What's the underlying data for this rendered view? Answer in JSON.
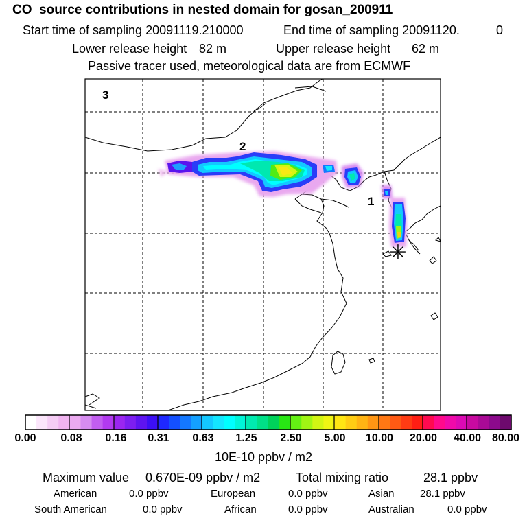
{
  "header": {
    "title": "CO  source contributions in nested domain for gosan_200911",
    "start_label": "Start time of sampling 20091119.210000",
    "end_label": "End time of sampling 20091120.",
    "end_value": "0",
    "lower_label": "Lower release height",
    "lower_value": "82 m",
    "upper_label": "Upper release height",
    "upper_value": "62 m",
    "tracer_line": "Passive tracer used, meteorological data are from ECMWF"
  },
  "map": {
    "markers": [
      "1",
      "2",
      "3"
    ],
    "receptor_symbol": "✳"
  },
  "colorbar": {
    "labels": [
      "0.00",
      "0.08",
      "0.16",
      "0.31",
      "0.63",
      "1.25",
      "2.50",
      "5.00",
      "10.00",
      "20.00",
      "40.00",
      "80.00"
    ],
    "unit": "10E-10 ppbv / m2",
    "colors": [
      "#ffffff",
      "#fbe6fb",
      "#f5cdf5",
      "#f0b4f0",
      "#ebaaf0",
      "#d68cf0",
      "#c25ef0",
      "#b23af0",
      "#9b26f0",
      "#7d1ef0",
      "#5e14f0",
      "#3c0ff5",
      "#1e28ff",
      "#1450ff",
      "#1478ff",
      "#14a0ff",
      "#14c8ff",
      "#14e6ff",
      "#00ffff",
      "#00f5d8",
      "#00eab0",
      "#00e088",
      "#00d25a",
      "#28e614",
      "#64f014",
      "#a0f514",
      "#d2f514",
      "#f0f514",
      "#ffe614",
      "#ffcd14",
      "#ffb414",
      "#ff9614",
      "#ff7814",
      "#ff5a14",
      "#ff3c14",
      "#ff1e14",
      "#ff0a50",
      "#ff0a8c",
      "#f00aaa",
      "#dc0ab4",
      "#c80aa0",
      "#aa0a96",
      "#8c0a8c",
      "#6e0a6e"
    ]
  },
  "stats": {
    "max_label": "Maximum value",
    "max_value": "0.670E-09 ppbv / m2",
    "total_label": "Total mixing ratio",
    "total_value": "28.1 ppbv",
    "regions": [
      {
        "name": "American",
        "value": "0.0 ppbv"
      },
      {
        "name": "European",
        "value": "0.0 ppbv"
      },
      {
        "name": "Asian",
        "value": "28.1 ppbv"
      },
      {
        "name": "South American",
        "value": "0.0 ppbv"
      },
      {
        "name": "African",
        "value": "0.0 ppbv"
      },
      {
        "name": "Australian",
        "value": "0.0 ppbv"
      }
    ]
  }
}
